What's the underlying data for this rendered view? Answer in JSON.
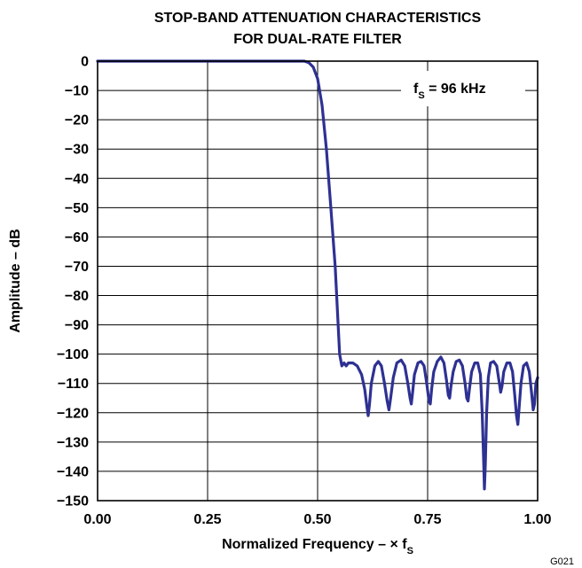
{
  "figure_id": "G021",
  "chart_data": {
    "type": "line",
    "title": "STOP-BAND ATTENUATION CHARACTERISTICS",
    "subtitle": "FOR DUAL-RATE FILTER",
    "xlabel_main": "Normalized Frequency – × f",
    "xlabel_sub": "S",
    "ylabel": "Amplitude – dB",
    "annotation_main": "f",
    "annotation_sub": "S",
    "annotation_rest": " = 96 kHz",
    "xlim": [
      0,
      1
    ],
    "ylim": [
      -150,
      0
    ],
    "x_ticks": [
      0,
      0.25,
      0.5,
      0.75,
      1.0
    ],
    "x_tick_labels": [
      "0.00",
      "0.25",
      "0.50",
      "0.75",
      "1.00"
    ],
    "y_ticks": [
      0,
      -10,
      -20,
      -30,
      -40,
      -50,
      -60,
      -70,
      -80,
      -90,
      -100,
      -110,
      -120,
      -130,
      -140,
      -150
    ],
    "y_tick_labels": [
      "0",
      "−10",
      "−20",
      "−30",
      "−40",
      "−50",
      "−60",
      "−70",
      "−80",
      "−90",
      "−100",
      "−110",
      "−120",
      "−130",
      "−140",
      "−150"
    ],
    "grid": true,
    "line_color": "#2e3192",
    "series": [
      {
        "points": [
          [
            0.0,
            0
          ],
          [
            0.1,
            0
          ],
          [
            0.2,
            0
          ],
          [
            0.3,
            0
          ],
          [
            0.4,
            0
          ],
          [
            0.47,
            0
          ],
          [
            0.48,
            -0.5
          ],
          [
            0.49,
            -2
          ],
          [
            0.5,
            -6
          ],
          [
            0.51,
            -15
          ],
          [
            0.52,
            -30
          ],
          [
            0.53,
            -50
          ],
          [
            0.54,
            -70
          ],
          [
            0.545,
            -85
          ],
          [
            0.55,
            -100
          ],
          [
            0.555,
            -104
          ],
          [
            0.56,
            -103
          ],
          [
            0.565,
            -104
          ],
          [
            0.57,
            -103
          ],
          [
            0.58,
            -103
          ],
          [
            0.59,
            -104
          ],
          [
            0.6,
            -107
          ],
          [
            0.607,
            -112
          ],
          [
            0.612,
            -118
          ],
          [
            0.615,
            -121
          ],
          [
            0.618,
            -117
          ],
          [
            0.622,
            -110
          ],
          [
            0.63,
            -104
          ],
          [
            0.638,
            -102.5
          ],
          [
            0.645,
            -104
          ],
          [
            0.652,
            -110
          ],
          [
            0.658,
            -116
          ],
          [
            0.662,
            -119
          ],
          [
            0.666,
            -115
          ],
          [
            0.672,
            -108
          ],
          [
            0.68,
            -103
          ],
          [
            0.69,
            -102
          ],
          [
            0.698,
            -104
          ],
          [
            0.705,
            -110
          ],
          [
            0.71,
            -115
          ],
          [
            0.713,
            -117
          ],
          [
            0.716,
            -113
          ],
          [
            0.72,
            -107
          ],
          [
            0.728,
            -103
          ],
          [
            0.735,
            -102.5
          ],
          [
            0.742,
            -104
          ],
          [
            0.748,
            -110
          ],
          [
            0.753,
            -116
          ],
          [
            0.756,
            -117
          ],
          [
            0.759,
            -112
          ],
          [
            0.764,
            -106
          ],
          [
            0.772,
            -102.5
          ],
          [
            0.78,
            -101
          ],
          [
            0.787,
            -103
          ],
          [
            0.793,
            -109
          ],
          [
            0.797,
            -114
          ],
          [
            0.8,
            -115
          ],
          [
            0.803,
            -111
          ],
          [
            0.808,
            -106
          ],
          [
            0.815,
            -102.5
          ],
          [
            0.822,
            -102
          ],
          [
            0.829,
            -104
          ],
          [
            0.835,
            -110
          ],
          [
            0.839,
            -115
          ],
          [
            0.842,
            -116
          ],
          [
            0.845,
            -112
          ],
          [
            0.85,
            -106
          ],
          [
            0.857,
            -103
          ],
          [
            0.864,
            -103
          ],
          [
            0.87,
            -107
          ],
          [
            0.874,
            -120
          ],
          [
            0.877,
            -135
          ],
          [
            0.879,
            -146
          ],
          [
            0.881,
            -138
          ],
          [
            0.884,
            -120
          ],
          [
            0.888,
            -108
          ],
          [
            0.893,
            -103
          ],
          [
            0.9,
            -102.5
          ],
          [
            0.907,
            -104
          ],
          [
            0.912,
            -109
          ],
          [
            0.916,
            -113
          ],
          [
            0.919,
            -111
          ],
          [
            0.923,
            -106
          ],
          [
            0.93,
            -103
          ],
          [
            0.937,
            -103
          ],
          [
            0.943,
            -106
          ],
          [
            0.948,
            -114
          ],
          [
            0.952,
            -121
          ],
          [
            0.955,
            -124
          ],
          [
            0.958,
            -118
          ],
          [
            0.962,
            -110
          ],
          [
            0.968,
            -104
          ],
          [
            0.975,
            -103
          ],
          [
            0.981,
            -106
          ],
          [
            0.986,
            -113
          ],
          [
            0.99,
            -119
          ],
          [
            0.993,
            -117
          ],
          [
            0.996,
            -110
          ],
          [
            1.0,
            -108
          ]
        ]
      }
    ]
  }
}
